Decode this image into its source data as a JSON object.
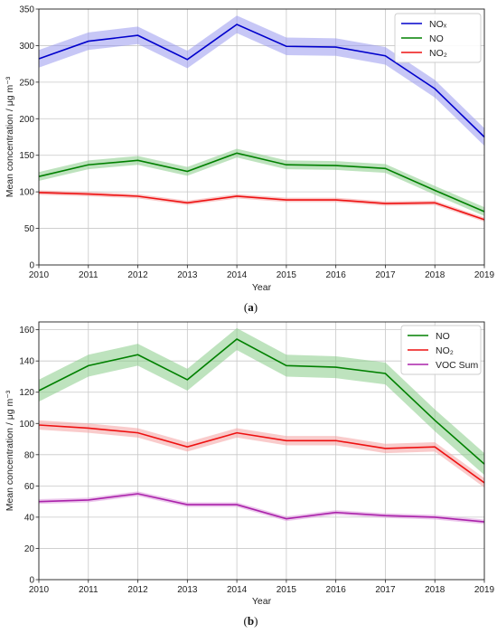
{
  "chart_data": [
    {
      "type": "line",
      "panel_caption": "(a)",
      "caption_letter": "a",
      "xlabel": "Year",
      "ylabel": "Mean concentration / μg m⁻³",
      "x": [
        2010,
        2011,
        2012,
        2013,
        2014,
        2015,
        2016,
        2017,
        2018,
        2019
      ],
      "xlim": [
        2010,
        2019
      ],
      "ylim": [
        0,
        350
      ],
      "yticks": [
        0,
        50,
        100,
        150,
        200,
        250,
        300,
        350
      ],
      "grid": true,
      "legend_position": "top-right",
      "series": [
        {
          "name": "NOₓ",
          "color": "#0000cc",
          "band_color": "#9999ee",
          "values": [
            282,
            306,
            314,
            281,
            329,
            299,
            298,
            286,
            241,
            175
          ],
          "band": [
            12,
            12,
            12,
            12,
            12,
            12,
            12,
            12,
            12,
            12
          ]
        },
        {
          "name": "NO",
          "color": "#008000",
          "band_color": "#88cc88",
          "values": [
            121,
            137,
            143,
            128,
            153,
            137,
            136,
            132,
            102,
            73
          ],
          "band": [
            6,
            6,
            6,
            6,
            6,
            6,
            6,
            6,
            6,
            6
          ]
        },
        {
          "name": "NO₂",
          "color": "#ee1111",
          "band_color": "#f4a0a0",
          "values": [
            99,
            97,
            94,
            85,
            94,
            89,
            89,
            84,
            85,
            62
          ],
          "band": [
            3,
            3,
            3,
            3,
            3,
            3,
            3,
            3,
            3,
            3
          ]
        }
      ]
    },
    {
      "type": "line",
      "panel_caption": "(b)",
      "caption_letter": "b",
      "xlabel": "Year",
      "ylabel": "Mean concentration / μg m⁻³",
      "x": [
        2010,
        2011,
        2012,
        2013,
        2014,
        2015,
        2016,
        2017,
        2018,
        2019
      ],
      "xlim": [
        2010,
        2019
      ],
      "ylim": [
        0,
        165
      ],
      "yticks": [
        0,
        20,
        40,
        60,
        80,
        100,
        120,
        140,
        160
      ],
      "grid": true,
      "legend_position": "top-right",
      "series": [
        {
          "name": "NO",
          "color": "#008000",
          "band_color": "#88cc88",
          "values": [
            121,
            137,
            144,
            128,
            154,
            137,
            136,
            132,
            102,
            74
          ],
          "band": [
            7,
            7,
            7,
            7,
            7,
            7,
            7,
            7,
            7,
            7
          ]
        },
        {
          "name": "NO₂",
          "color": "#ee1111",
          "band_color": "#f4a0a0",
          "values": [
            99,
            97,
            94,
            85,
            94,
            89,
            89,
            84,
            85,
            62
          ],
          "band": [
            3,
            3,
            3,
            3,
            3,
            3,
            3,
            3,
            3,
            3
          ]
        },
        {
          "name": "VOC Sum",
          "color": "#aa22aa",
          "band_color": "#dd99dd",
          "values": [
            50,
            51,
            55,
            48,
            48,
            39,
            43,
            41,
            40,
            37
          ],
          "band": [
            1.5,
            1.5,
            1.5,
            1.5,
            1.5,
            1.5,
            1.5,
            1.5,
            1.5,
            1.5
          ]
        }
      ]
    }
  ]
}
